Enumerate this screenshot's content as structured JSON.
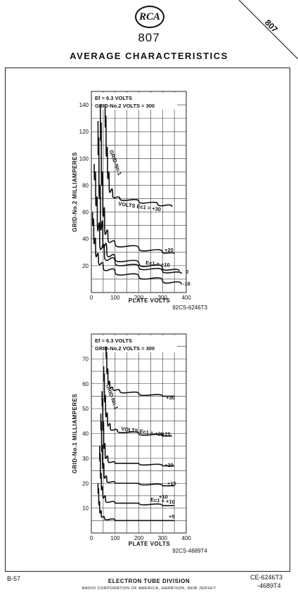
{
  "header": {
    "logo": "RCA",
    "tube_number": "807",
    "title": "AVERAGE CHARACTERISTICS",
    "corner_number": "807"
  },
  "footer": {
    "left": "B-57",
    "center": "ELECTRON TUBE DIVISION",
    "sub": "RADIO CORPORATION OF AMERICA, HARRISON, NEW JERSEY",
    "right_1": "CE-6246T3",
    "right_2": "-4689T4"
  },
  "chart_data": [
    {
      "type": "line",
      "conditions": [
        "Ef = 6.3 VOLTS",
        "GRID-No.2 VOLTS = 300"
      ],
      "xlabel": "PLATE VOLTS",
      "ylabel": "GRID-No.2 MILLIAMPERES",
      "xlim": [
        0,
        400
      ],
      "ylim": [
        0,
        150
      ],
      "xticks": [
        0,
        100,
        200,
        300,
        400
      ],
      "xtick_labels": [
        "0",
        "100",
        "200",
        "300",
        "400"
      ],
      "yticks": [
        20,
        40,
        60,
        80,
        100,
        120,
        140
      ],
      "ytick_labels": [
        "20",
        "40",
        "60",
        "80",
        "100",
        "120",
        "140"
      ],
      "grid": true,
      "rotated_label": "GRID-No.1",
      "family_label": "VOLTS Ec1 = +30",
      "mid_label": "Ec1 = +10",
      "code": "92CS-6246T3",
      "series": [
        {
          "name": "+30",
          "x": [
            58,
            62,
            68,
            75,
            90,
            120,
            200,
            280,
            340
          ],
          "y": [
            140,
            115,
            95,
            80,
            72,
            70,
            68,
            66,
            64
          ]
        },
        {
          "name": "+20",
          "x": [
            38,
            42,
            48,
            56,
            70,
            100,
            200,
            300,
            350
          ],
          "y": [
            140,
            100,
            70,
            50,
            40,
            36,
            33,
            30,
            29
          ]
        },
        {
          "name": "",
          "x": [
            28,
            32,
            38,
            48,
            65,
            100,
            200,
            300,
            370
          ],
          "y": [
            128,
            90,
            60,
            40,
            30,
            25,
            22,
            18,
            16
          ]
        },
        {
          "name": "0",
          "x": [
            12,
            18,
            25,
            35,
            55,
            100,
            200,
            300,
            380
          ],
          "y": [
            96,
            78,
            58,
            40,
            28,
            22,
            19,
            16,
            14
          ]
        },
        {
          "name": "-10",
          "x": [
            5,
            10,
            18,
            30,
            50,
            100,
            200,
            300,
            380
          ],
          "y": [
            60,
            45,
            32,
            24,
            19,
            15,
            12,
            9,
            6
          ]
        }
      ]
    },
    {
      "type": "line",
      "conditions": [
        "Ef = 6.3 VOLTS",
        "GRID-No.2 VOLTS = 300"
      ],
      "xlabel": "PLATE VOLTS",
      "ylabel": "GRID-No.1 MILLIAMPERES",
      "xlim": [
        0,
        400
      ],
      "ylim": [
        0,
        80
      ],
      "xticks": [
        0,
        100,
        200,
        300,
        400
      ],
      "xtick_labels": [
        "0",
        "100",
        "200",
        "300",
        "400"
      ],
      "yticks": [
        10,
        20,
        30,
        40,
        50,
        60,
        70
      ],
      "ytick_labels": [
        "10",
        "20",
        "30",
        "40",
        "50",
        "60",
        "70"
      ],
      "grid": true,
      "rotated_label": "GRID-No.1",
      "family_label": "VOLTS Ec1 = +25",
      "mid_label": "Ec1 = +10",
      "code": "92CS-4689T4",
      "series": [
        {
          "name": "+30",
          "x": [
            62,
            65,
            70,
            78,
            90,
            120,
            200,
            300,
            350
          ],
          "y": [
            75,
            68,
            62,
            59,
            58,
            57,
            56,
            55,
            55
          ]
        },
        {
          "name": "+25",
          "x": [
            52,
            55,
            60,
            68,
            80,
            110,
            200,
            300,
            340
          ],
          "y": [
            67,
            58,
            50,
            45,
            42,
            41,
            40,
            39,
            39
          ]
        },
        {
          "name": "+20",
          "x": [
            45,
            48,
            52,
            58,
            70,
            100,
            200,
            300,
            350
          ],
          "y": [
            57,
            48,
            38,
            32,
            29,
            28,
            28,
            27,
            27
          ]
        },
        {
          "name": "+15",
          "x": [
            40,
            43,
            47,
            53,
            65,
            100,
            200,
            300,
            350
          ],
          "y": [
            48,
            38,
            30,
            24,
            21,
            20,
            20,
            19,
            19
          ]
        },
        {
          "name": "+10",
          "x": [
            35,
            38,
            42,
            48,
            60,
            100,
            200,
            300,
            350
          ],
          "y": [
            35,
            26,
            20,
            16,
            13,
            12,
            12,
            11,
            11
          ]
        },
        {
          "name": "+5",
          "x": [
            28,
            31,
            35,
            42,
            55,
            100,
            200,
            300,
            350
          ],
          "y": [
            20,
            14,
            10,
            7,
            6,
            5,
            5,
            5,
            5
          ]
        }
      ]
    }
  ]
}
